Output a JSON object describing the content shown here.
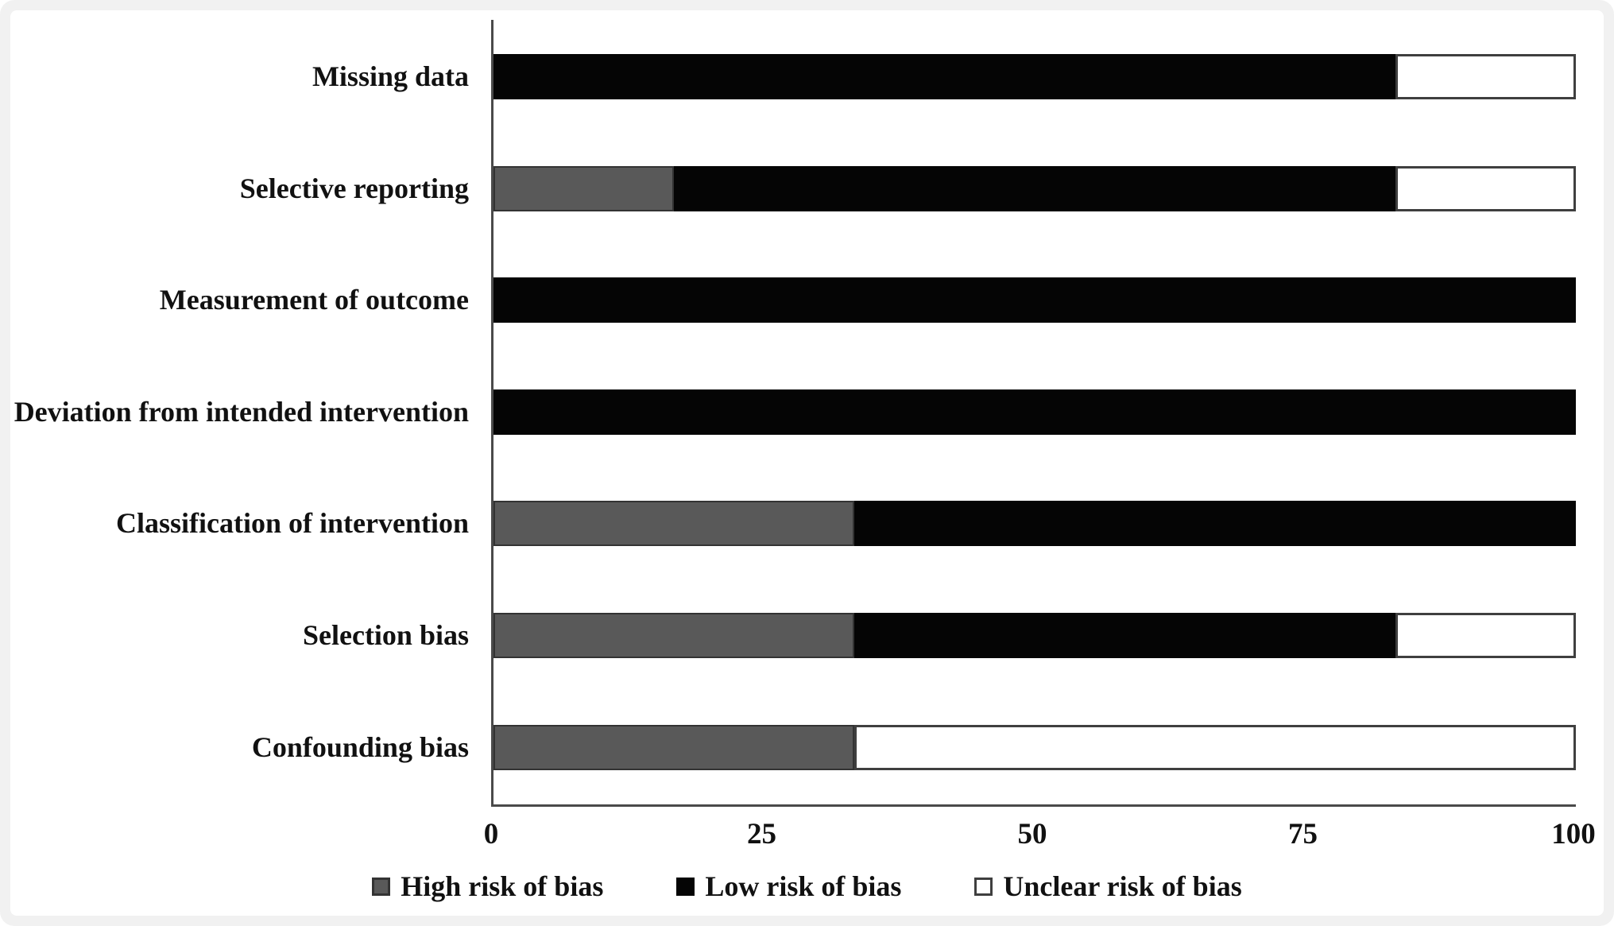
{
  "frame": {
    "panel_background": "#ffffff",
    "frame_color": "#f1f1f1",
    "axis_color": "#4a4a4a"
  },
  "chart_data": {
    "type": "bar",
    "orientation": "horizontal",
    "stacked": true,
    "stack_unit": "percent",
    "title": "",
    "xlabel": "",
    "ylabel": "",
    "xlim": [
      0,
      100
    ],
    "x_ticks": [
      "0",
      "25",
      "50",
      "75",
      "100"
    ],
    "grid": false,
    "legend_position": "bottom-center",
    "categories": [
      "Missing data",
      "Selective reporting",
      "Measurement of outcome",
      "Deviation from intended intervention",
      "Classification of intervention",
      "Selection bias",
      "Confounding bias"
    ],
    "series": [
      {
        "name": "High risk of bias",
        "color": "#595959",
        "border_color": "#333333",
        "values": [
          0,
          16.7,
          0,
          0,
          33.3,
          33.3,
          33.3
        ]
      },
      {
        "name": "Low risk of bias",
        "color": "#050505",
        "border_color": "#050505",
        "values": [
          83.3,
          66.7,
          100,
          100,
          66.7,
          50,
          0
        ]
      },
      {
        "name": "Unclear risk of bias",
        "color": "#ffffff",
        "border_color": "#3f3f3f",
        "values": [
          16.7,
          16.7,
          0,
          0,
          0,
          16.7,
          66.7
        ]
      }
    ]
  }
}
